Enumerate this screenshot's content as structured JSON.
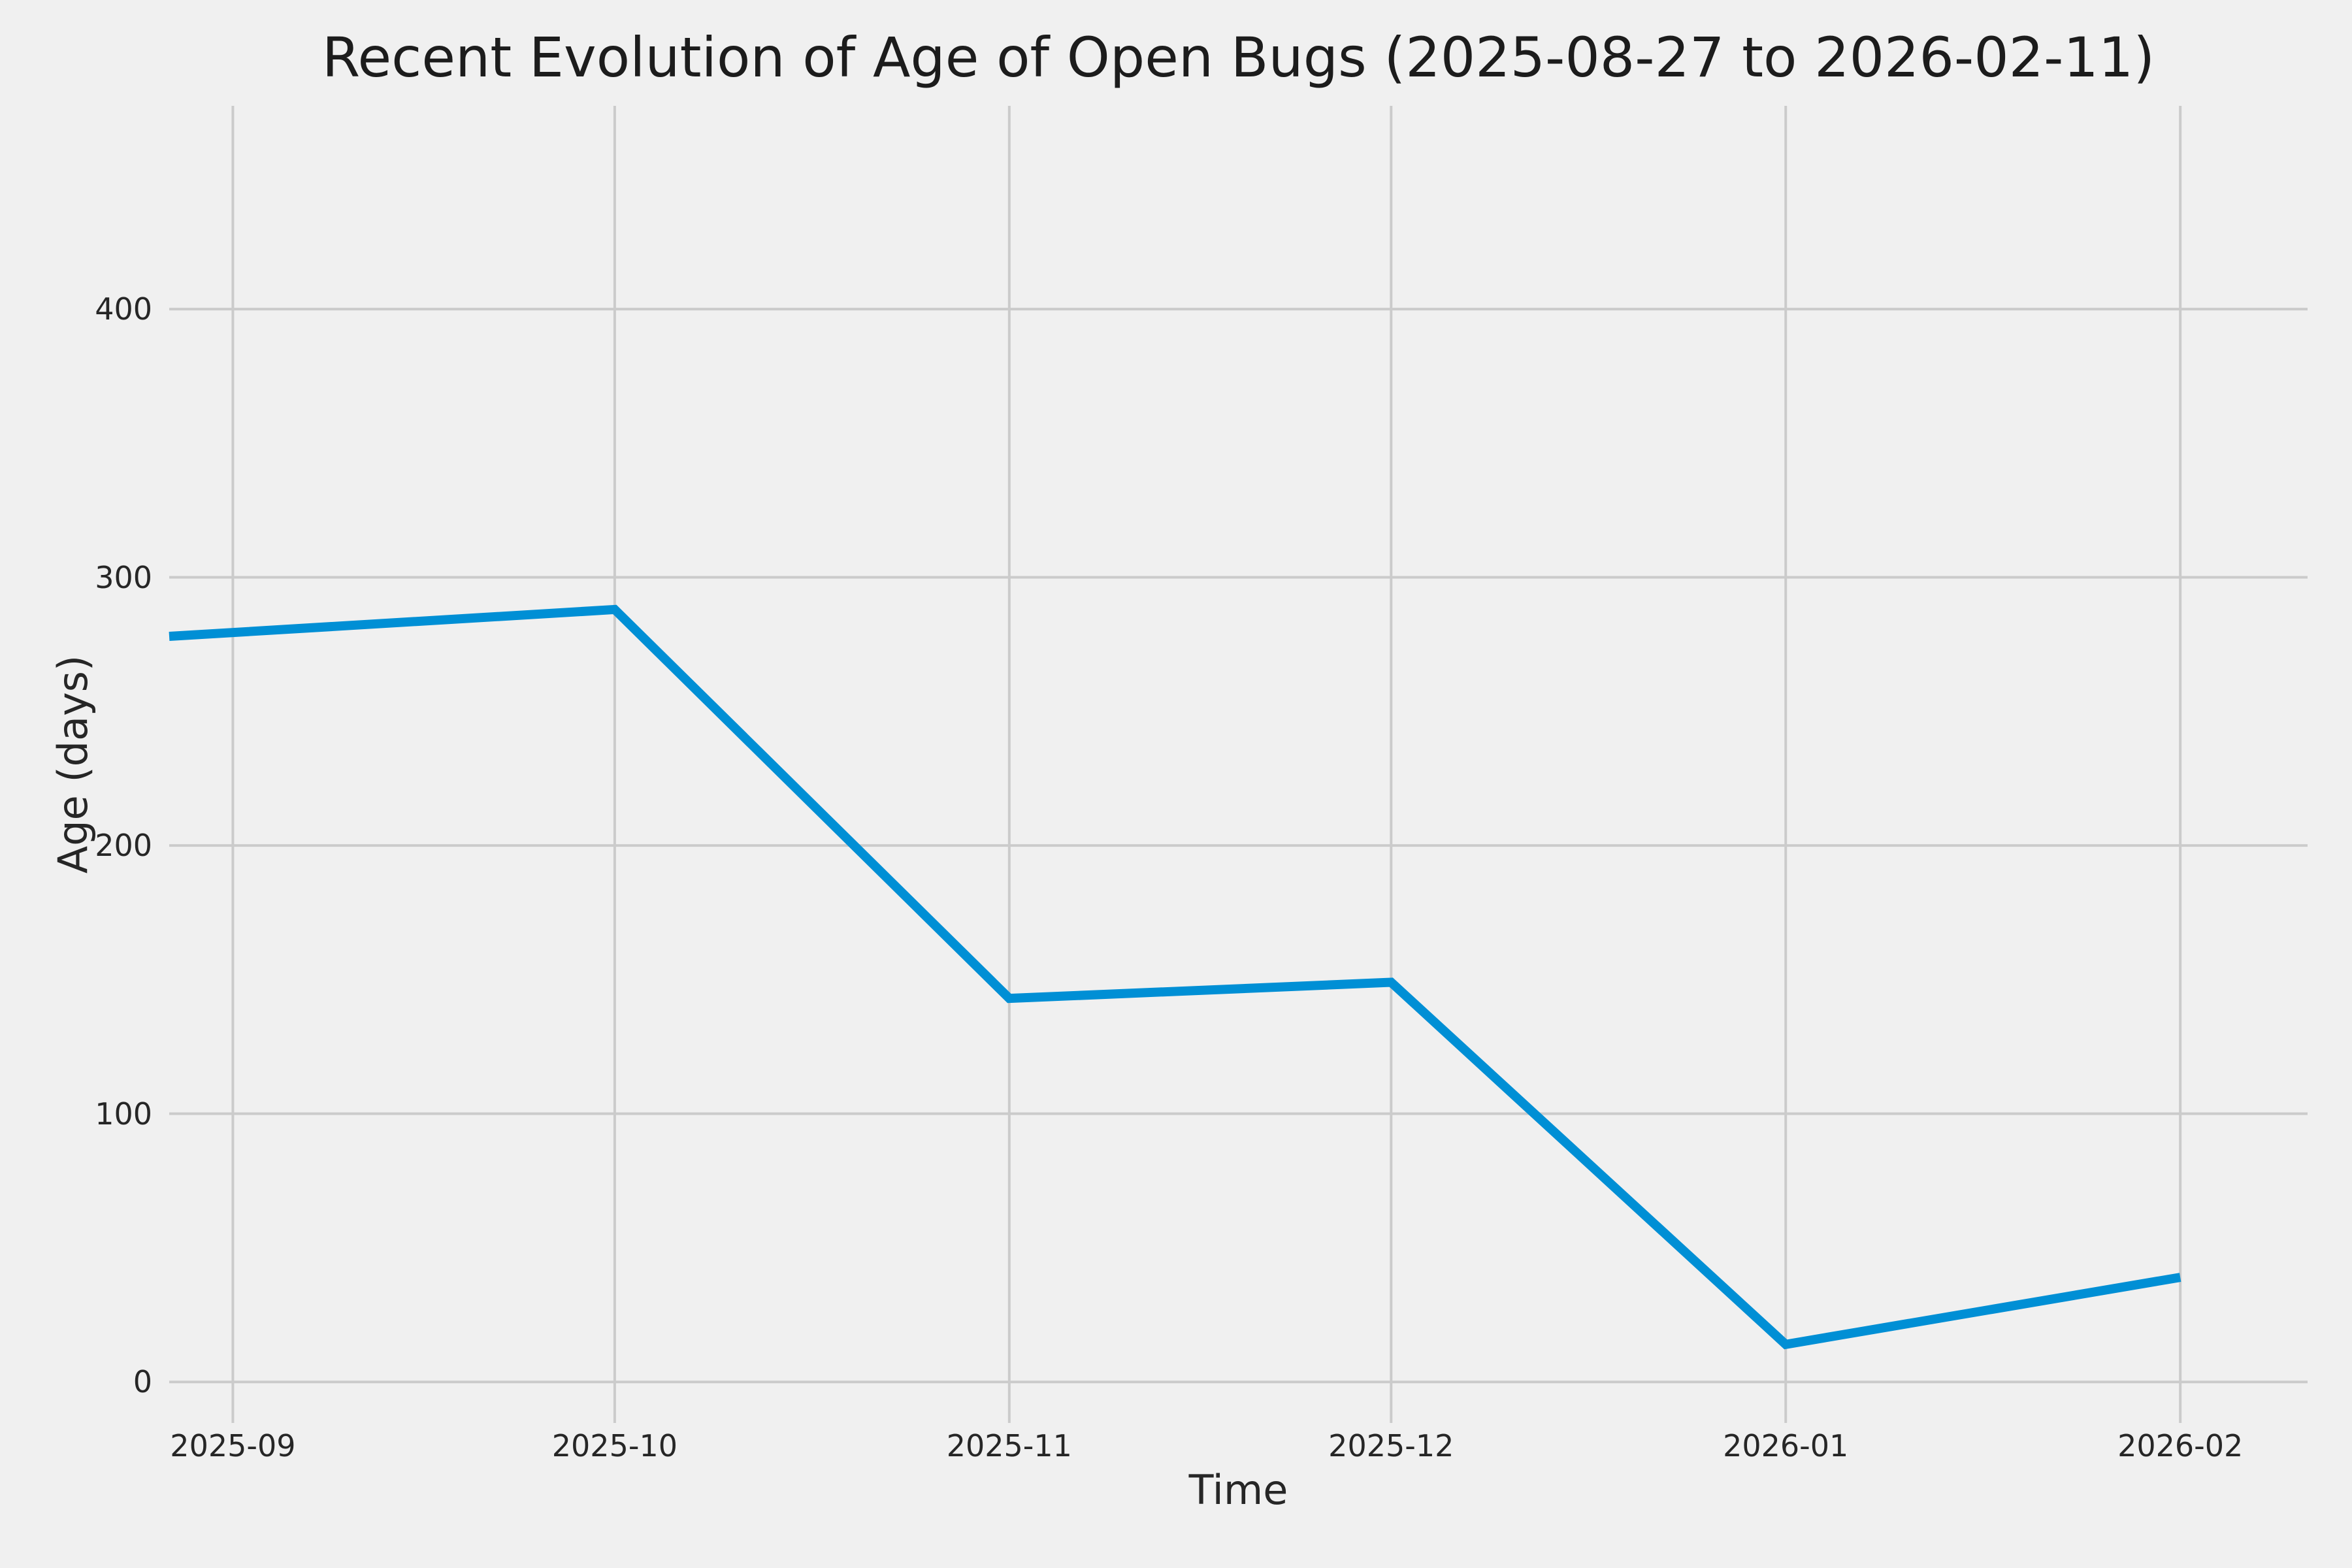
{
  "chart_data": {
    "type": "line",
    "title": "Recent Evolution of Age of Open Bugs (2025-08-27 to 2026-02-11)",
    "xlabel": "Time",
    "ylabel": "Age (days)",
    "grid": true,
    "legend": false,
    "x_axis": {
      "start_date": "2025-08-27",
      "end_date": "2026-02-11",
      "ticks": [
        {
          "label": "2025-09",
          "date": "2025-09-01"
        },
        {
          "label": "2025-10",
          "date": "2025-10-01"
        },
        {
          "label": "2025-11",
          "date": "2025-11-01"
        },
        {
          "label": "2025-12",
          "date": "2025-12-01"
        },
        {
          "label": "2026-01",
          "date": "2026-01-01"
        },
        {
          "label": "2026-02",
          "date": "2026-02-01"
        }
      ]
    },
    "y_axis": {
      "range": [
        -15.3,
        475.8
      ],
      "ticks": [
        {
          "label": "0",
          "value": 0
        },
        {
          "label": "100",
          "value": 100
        },
        {
          "label": "200",
          "value": 200
        },
        {
          "label": "300",
          "value": 300
        },
        {
          "label": "400",
          "value": 400
        }
      ]
    },
    "series": [
      {
        "color": "#008fd5",
        "points": [
          {
            "date": "2025-08-27",
            "value": 278
          },
          {
            "date": "2025-10-01",
            "value": 288
          },
          {
            "date": "2025-11-01",
            "value": 143
          },
          {
            "date": "2025-12-01",
            "value": 149
          },
          {
            "date": "2026-01-01",
            "value": 14
          },
          {
            "date": "2026-02-01",
            "value": 39
          }
        ]
      }
    ]
  },
  "style": {
    "background": "#f0f0f0",
    "grid_color": "#cbcbcb",
    "line_color": "#008fd5",
    "text_color": "#262626"
  }
}
